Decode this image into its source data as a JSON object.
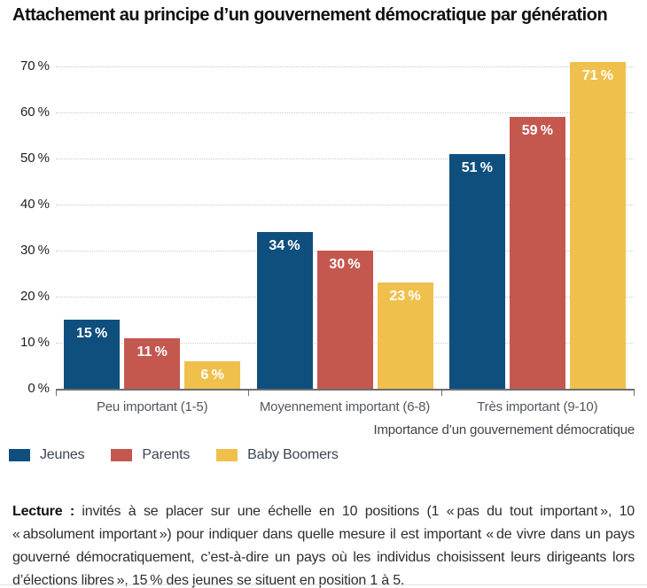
{
  "title": "Attachement au principe d’un gouvernement démocratique par génération",
  "chart_data": {
    "type": "bar",
    "title": "Attachement au principe d’un gouvernement démocratique par génération",
    "categories": [
      "Peu important (1-5)",
      "Moyennement important (6-8)",
      "Très important (9-10)"
    ],
    "series": [
      {
        "name": "Jeunes",
        "color": "#0F4F7E",
        "values": [
          15,
          34,
          51
        ],
        "labels": [
          "15 %",
          "34 %",
          "51 %"
        ]
      },
      {
        "name": "Parents",
        "color": "#C4584F",
        "values": [
          11,
          30,
          59
        ],
        "labels": [
          "11 %",
          "30 %",
          "59 %"
        ]
      },
      {
        "name": "Baby Boomers",
        "color": "#F0C04C",
        "values": [
          6,
          23,
          71
        ],
        "labels": [
          "6 %",
          "23 %",
          "71 %"
        ]
      }
    ],
    "xlabel": "Importance d’un gouvernement démocratique",
    "ylabel": "",
    "ylim": [
      0,
      70
    ],
    "ytick_step": 10,
    "yticks": [
      "0 %",
      "10 %",
      "20 %",
      "30 %",
      "40 %",
      "50 %",
      "60 %",
      "70 %"
    ],
    "grid": "horizontal-dotted",
    "legend_position": "bottom-left",
    "value_labels_position": "inside-top"
  },
  "note": {
    "label": "Lecture :",
    "text": " invités à se placer sur une échelle en 10 positions (1 « pas du tout important », 10 « absolument important ») pour indiquer dans quelle mesure il est important « de vivre dans un pays gouverné démocratiquement, c’est-à-dire un pays où les individus choisissent leurs dirigeants lors d’élections libres », 15 % des jeunes se situent en position 1 à 5."
  }
}
